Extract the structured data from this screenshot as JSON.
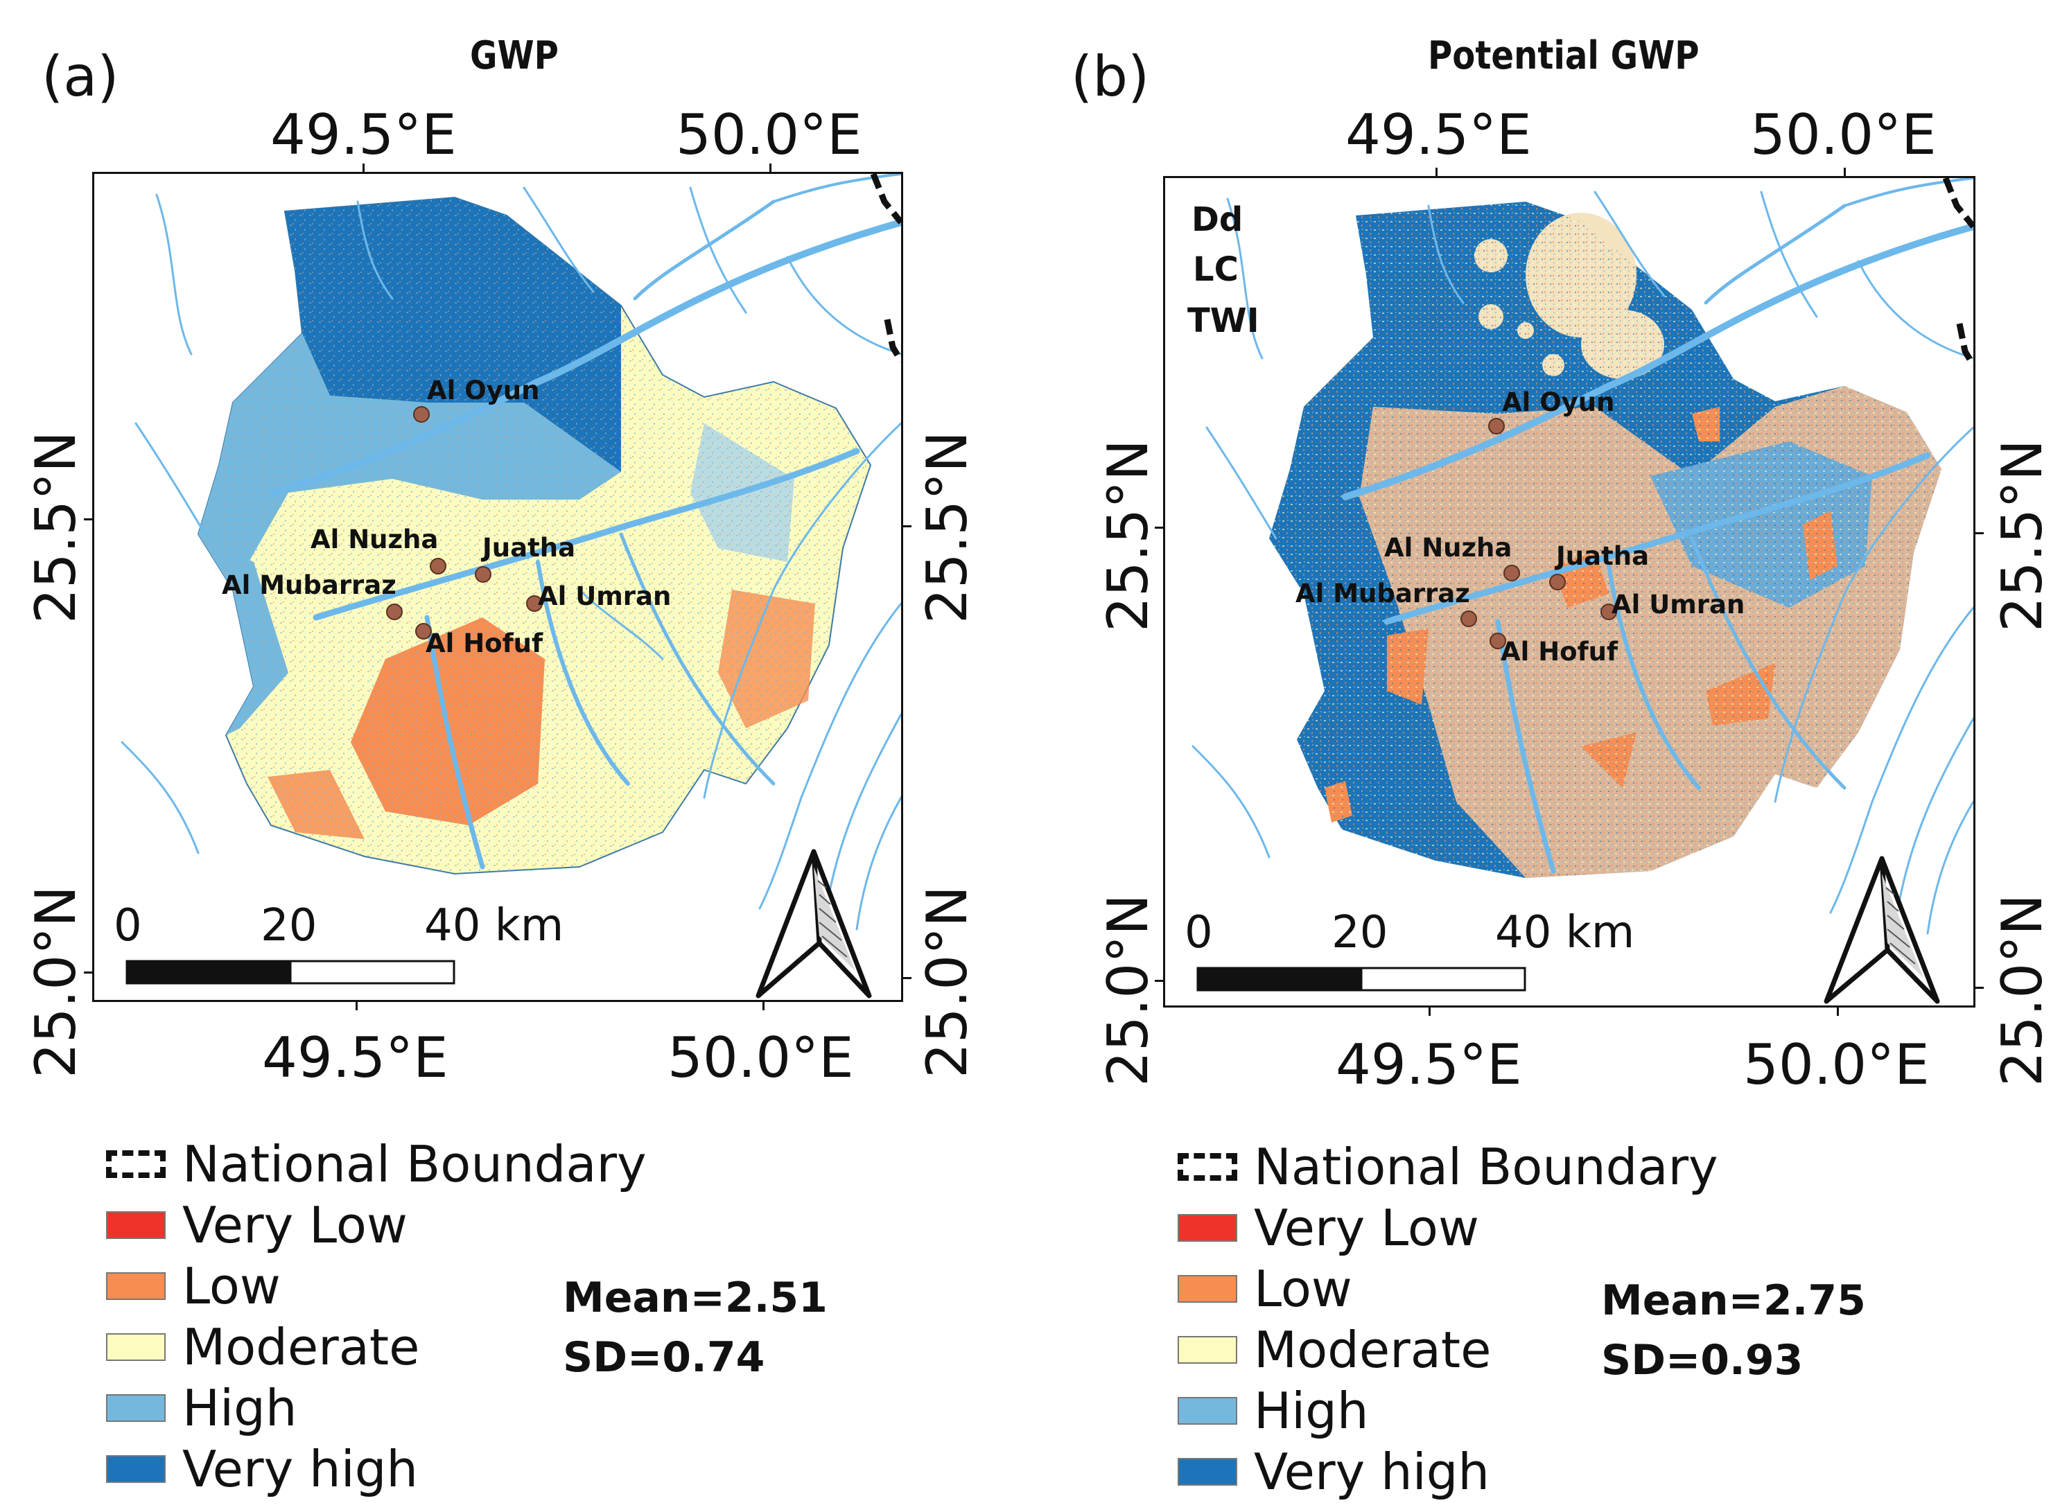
{
  "panels": [
    {
      "label": "(a)",
      "title": "GWP",
      "top_x_labels": [
        "49.5°E",
        "50.0°E"
      ],
      "bottom_x_labels": [
        "49.5°E",
        "50.0°E"
      ],
      "left_y_labels": [
        "25.5°N",
        "25.0°N"
      ],
      "right_y_labels": [
        "25.5°N",
        "25.0°N"
      ],
      "factors": [],
      "cities": [
        "Al Oyun",
        "Al Nuzha",
        "Juatha",
        "Al Mubarraz",
        "Al Umran",
        "Al Hofuf"
      ],
      "scale_labels": [
        "0",
        "20",
        "40 km"
      ],
      "mean": "Mean=2.51",
      "sd": "SD=0.74"
    },
    {
      "label": "(b)",
      "title": "Potential GWP",
      "top_x_labels": [
        "49.5°E",
        "50.0°E"
      ],
      "bottom_x_labels": [
        "49.5°E",
        "50.0°E"
      ],
      "left_y_labels": [
        "25.5°N",
        "25.0°N"
      ],
      "right_y_labels": [
        "25.5°N",
        "25.0°N"
      ],
      "factors": [
        "Dd",
        "LC",
        "TWI"
      ],
      "cities": [
        "Al Oyun",
        "Al Nuzha",
        "Juatha",
        "Al Mubarraz",
        "Al Umran",
        "Al Hofuf"
      ],
      "scale_labels": [
        "0",
        "20",
        "40 km"
      ],
      "mean": "Mean=2.75",
      "sd": "SD=0.93"
    }
  ],
  "legend": [
    {
      "label": "National Boundary",
      "kind": "boundary"
    },
    {
      "label": "Very Low",
      "color": "#f0332a"
    },
    {
      "label": "Low",
      "color": "#f88d52"
    },
    {
      "label": "Moderate",
      "color": "#fdfcc0"
    },
    {
      "label": "High",
      "color": "#74b9dd"
    },
    {
      "label": "Very high",
      "color": "#1d74b8"
    }
  ],
  "colors": {
    "river": "#6db8ea",
    "city_marker": "#a0604a",
    "very_low": "#f0332a",
    "low": "#f88d52",
    "moderate": "#fdfcc0",
    "high": "#74b9dd",
    "very_high": "#1d74b8"
  }
}
